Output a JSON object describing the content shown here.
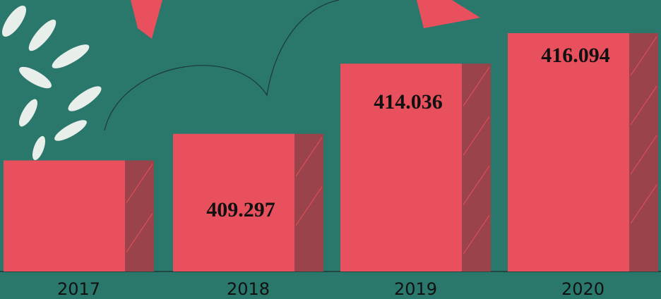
{
  "chart_data": {
    "type": "bar",
    "categories": [
      "2017",
      "2018",
      "2019",
      "2020"
    ],
    "values": [
      407.5,
      409.297,
      414.036,
      416.094
    ],
    "value_labels": [
      null,
      "409.297",
      "414.036",
      "416.094"
    ],
    "color": "#e9505d",
    "side_color": "#9a434a",
    "ylim": [
      400,
      418
    ]
  }
}
